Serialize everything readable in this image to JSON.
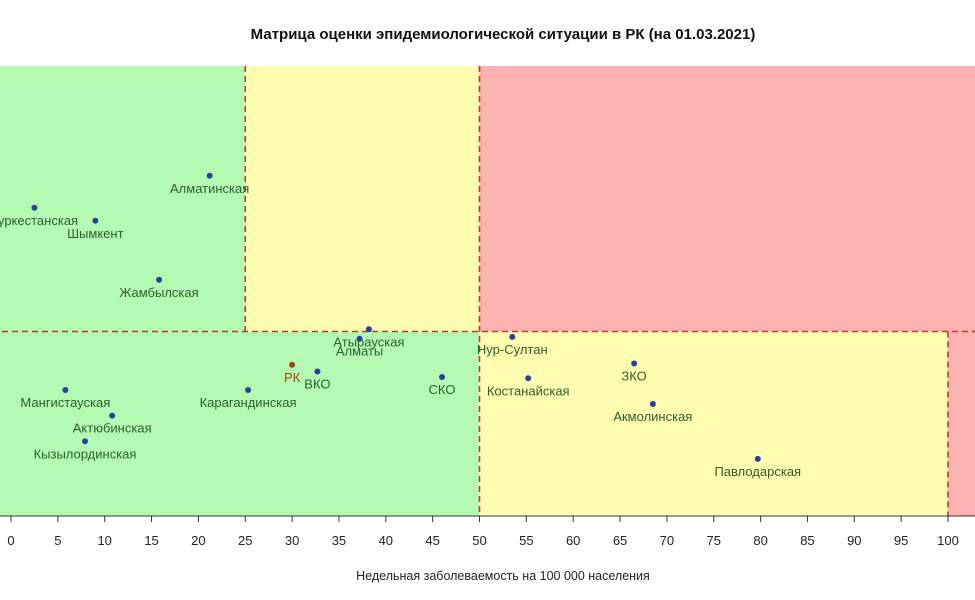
{
  "chart_data": {
    "type": "scatter",
    "title": "Матрица оценки эпидемиологической ситуации в РК (на 01.03.2021)",
    "xlabel": "Недельная заболеваемость на 100 000 населения",
    "ylabel": "",
    "xlim": [
      0,
      103
    ],
    "ylim": [
      0,
      100
    ],
    "x_ticks": [
      0,
      5,
      10,
      15,
      20,
      25,
      30,
      35,
      40,
      45,
      50,
      55,
      60,
      65,
      70,
      75,
      80,
      85,
      90,
      95,
      100
    ],
    "thresholds": {
      "x_low": 25,
      "x_mid": 50,
      "x_high": 100,
      "y_mid": 41
    },
    "zone_colors": {
      "green": "#b3fbb3",
      "yellow": "#fefdb0",
      "red": "#fdb2b2",
      "threshold_line": "#c0392b",
      "point": "#2c3e9e",
      "point_rk": "#a0420f",
      "label": "#2e5e2e",
      "label_rk": "#a0420f"
    },
    "points": [
      {
        "name": "Туркестанская",
        "x": 2.5,
        "y": 68.5
      },
      {
        "name": "Шымкент",
        "x": 9.0,
        "y": 65.6
      },
      {
        "name": "Алматинская",
        "x": 21.2,
        "y": 75.6
      },
      {
        "name": "Жамбылская",
        "x": 15.8,
        "y": 52.5
      },
      {
        "name": "Атырауская",
        "x": 38.2,
        "y": 41.5
      },
      {
        "name": "Алматы",
        "x": 37.2,
        "y": 39.4
      },
      {
        "name": "Нур-Султан",
        "x": 53.5,
        "y": 39.8
      },
      {
        "name": "РК",
        "x": 30.0,
        "y": 33.6,
        "highlight": true
      },
      {
        "name": "ВКО",
        "x": 32.7,
        "y": 32.1
      },
      {
        "name": "СКО",
        "x": 46.0,
        "y": 30.9
      },
      {
        "name": "Костанайская",
        "x": 55.2,
        "y": 30.6
      },
      {
        "name": "ЗКО",
        "x": 66.5,
        "y": 33.9
      },
      {
        "name": "Карагандинская",
        "x": 25.3,
        "y": 28.0
      },
      {
        "name": "Мангистауская",
        "x": 5.8,
        "y": 28.0
      },
      {
        "name": "Актюбинская",
        "x": 10.8,
        "y": 22.3
      },
      {
        "name": "Акмолинская",
        "x": 68.5,
        "y": 24.9
      },
      {
        "name": "Кызылординская",
        "x": 7.9,
        "y": 16.6
      },
      {
        "name": "Павлодарская",
        "x": 79.7,
        "y": 12.7
      }
    ]
  }
}
